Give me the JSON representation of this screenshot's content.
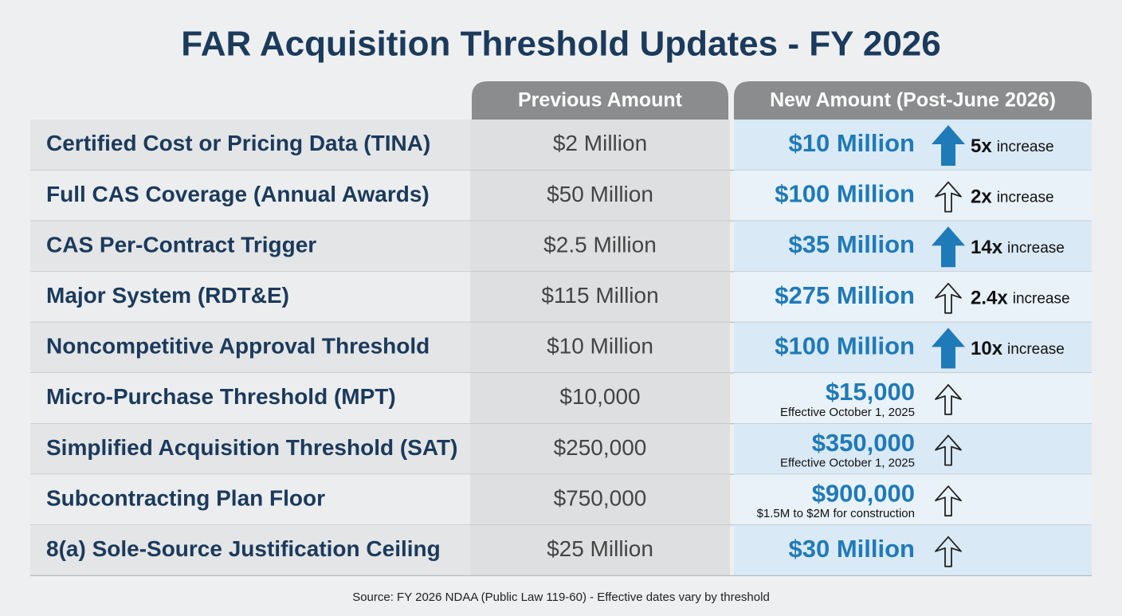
{
  "header": {
    "title": "FAR Acquisition Threshold Updates - FY 2026"
  },
  "table": {
    "columns": [
      "Previous Amount",
      "New Amount (Post-June 2026)"
    ],
    "rows": [
      {
        "label": "Certified Cost or Pricing Data (TINA)",
        "previous": "$2 Million",
        "new": "$10 Million",
        "arrow": "solid",
        "factor": "5x",
        "increase": "increase"
      },
      {
        "label": "Full CAS Coverage (Annual Awards)",
        "previous": "$50 Million",
        "new": "$100 Million",
        "arrow": "outline",
        "factor": "2x",
        "increase": "increase"
      },
      {
        "label": "CAS Per-Contract Trigger",
        "previous": "$2.5 Million",
        "new": "$35 Million",
        "arrow": "solid",
        "factor": "14x",
        "increase": "increase"
      },
      {
        "label": "Major System (RDT&E)",
        "previous": "$115 Million",
        "new": "$275 Million",
        "arrow": "outline",
        "factor": "2.4x",
        "increase": "increase"
      },
      {
        "label": "Noncompetitive Approval Threshold",
        "previous": "$10 Million",
        "new": "$100 Million",
        "arrow": "solid",
        "factor": "10x",
        "increase": "increase"
      },
      {
        "label": "Micro-Purchase Threshold (MPT)",
        "previous": "$10,000",
        "new": "$15,000",
        "note": "Effective October 1, 2025",
        "arrow": "outline"
      },
      {
        "label": "Simplified Acquisition Threshold (SAT)",
        "previous": "$250,000",
        "new": "$350,000",
        "note": "Effective October 1, 2025",
        "arrow": "outline"
      },
      {
        "label": "Subcontracting Plan Floor",
        "previous": "$750,000",
        "new": "$900,000",
        "note": "$1.5M to $2M for construction",
        "arrow": "outline"
      },
      {
        "label": "8(a) Sole-Source Justification Ceiling",
        "previous": "$25 Million",
        "new": "$30 Million",
        "arrow": "outline"
      }
    ]
  },
  "footer": {
    "source": "Source: FY 2026 NDAA (Public Law 119-60) - Effective dates vary by threshold"
  }
}
